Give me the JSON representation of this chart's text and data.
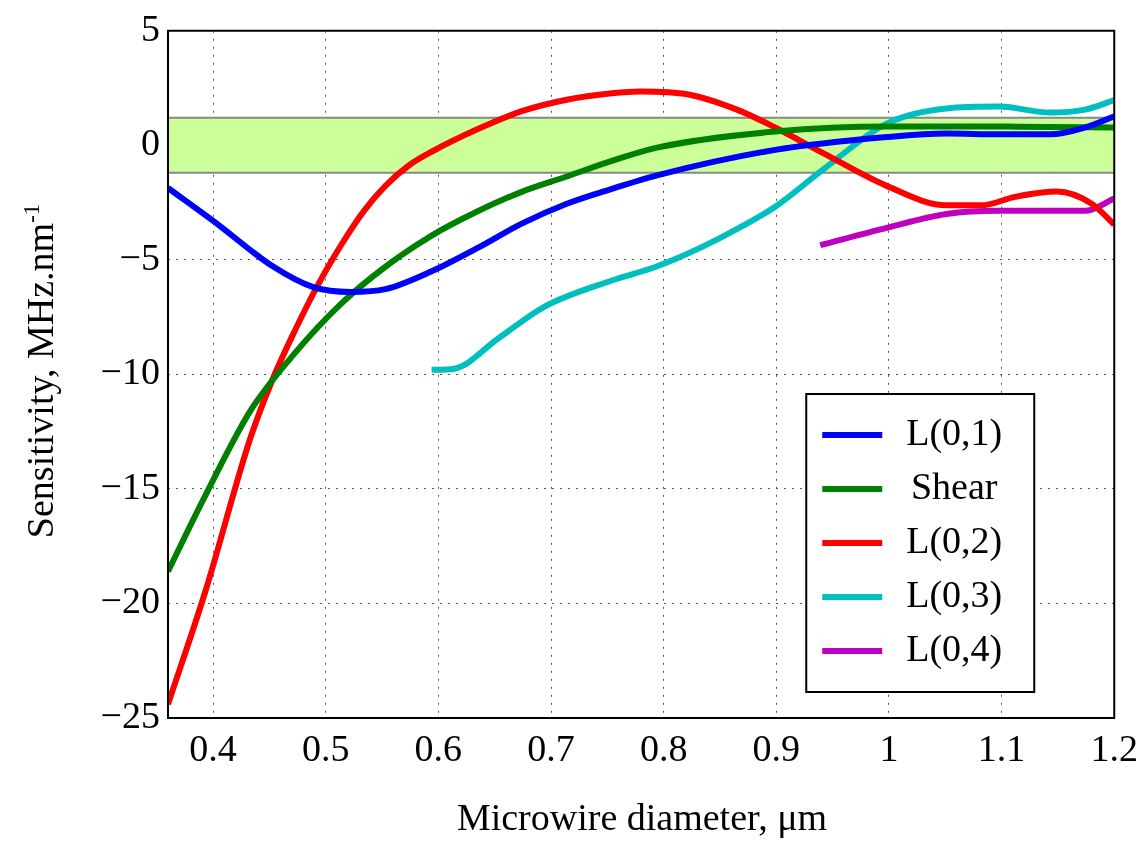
{
  "chart_data": {
    "type": "line",
    "xlabel": "Microwire diameter, μm",
    "ylabel": "Sensitivity, MHz.nm$^{-1}$",
    "xlim": [
      0.36,
      1.2
    ],
    "xticks": [
      0.4,
      0.5,
      0.6,
      0.7,
      0.8,
      0.9,
      1,
      1.1,
      1.2
    ],
    "ylim": [
      -25,
      5
    ],
    "yticks": [
      {
        "value": -25,
        "label": "−25"
      },
      {
        "value": -20,
        "label": "−20"
      },
      {
        "value": -15,
        "label": "−15"
      },
      {
        "value": -10,
        "label": "−10"
      },
      {
        "value": -5,
        "label": "−5"
      },
      0,
      5
    ],
    "grid": true,
    "legend": "bottom right",
    "marker": "none",
    "line_style": "solid",
    "bands": [
      {
        "axis": "y",
        "from": -1.2,
        "to": 1.2,
        "color": "#ccff99"
      }
    ],
    "ref_lines": [
      {
        "axis": "y",
        "value": -1.2,
        "color": "#888888"
      },
      {
        "axis": "y",
        "value": 1.2,
        "color": "#888888"
      }
    ],
    "series": [
      {
        "name": "L(0,1)",
        "color": "#0000ff",
        "x": [
          0.36,
          0.401,
          0.453,
          0.489,
          0.522,
          0.553,
          0.594,
          0.634,
          0.674,
          0.714,
          0.754,
          0.795,
          0.899,
          0.998,
          1.051,
          1.098,
          1.143,
          1.174,
          1.2
        ],
        "values": [
          -1.86,
          -3.33,
          -5.28,
          -6.19,
          -6.4,
          -6.28,
          -5.5,
          -4.5,
          -3.42,
          -2.55,
          -1.9,
          -1.3,
          -0.2,
          0.36,
          0.52,
          0.48,
          0.48,
          0.78,
          1.27
        ]
      },
      {
        "name": "Shear",
        "color": "#008000",
        "x": [
          0.36,
          0.393,
          0.433,
          0.473,
          0.514,
          0.553,
          0.594,
          0.634,
          0.674,
          0.714,
          0.754,
          0.795,
          0.899,
          0.998,
          1.098,
          1.2
        ],
        "values": [
          -18.6,
          -15.3,
          -11.6,
          -9.05,
          -6.9,
          -5.3,
          -3.94,
          -2.9,
          -2.03,
          -1.36,
          -0.68,
          -0.09,
          0.6,
          0.82,
          0.82,
          0.78
        ]
      },
      {
        "name": "L(0,2)",
        "color": "#ff0000",
        "x": [
          0.36,
          0.393,
          0.433,
          0.453,
          0.473,
          0.493,
          0.514,
          0.534,
          0.553,
          0.574,
          0.594,
          0.634,
          0.674,
          0.714,
          0.754,
          0.779,
          0.822,
          0.865,
          0.899,
          0.942,
          0.998,
          1.051,
          1.082,
          1.112,
          1.149,
          1.18,
          1.2
        ],
        "values": [
          -24.4,
          -19.5,
          -12.8,
          -10.2,
          -8.05,
          -6.1,
          -4.33,
          -2.86,
          -1.77,
          -0.87,
          -0.28,
          0.69,
          1.49,
          1.99,
          2.27,
          2.35,
          2.22,
          1.56,
          0.78,
          -0.35,
          -1.77,
          -2.62,
          -2.62,
          -2.25,
          -2.02,
          -2.55,
          -3.46
        ]
      },
      {
        "name": "L(0,3)",
        "color": "#00bfbf",
        "x": [
          0.594,
          0.614,
          0.654,
          0.694,
          0.754,
          0.795,
          0.849,
          0.899,
          0.942,
          0.998,
          1.051,
          1.098,
          1.143,
          1.174,
          1.2
        ],
        "values": [
          -9.8,
          -9.75,
          -8.4,
          -7.05,
          -5.9,
          -5.27,
          -4.07,
          -2.68,
          -1.04,
          0.95,
          1.61,
          1.69,
          1.43,
          1.56,
          1.97
        ]
      },
      {
        "name": "L(0,4)",
        "color": "#bf00bf",
        "x": [
          0.939,
          0.998,
          1.051,
          1.098,
          1.143,
          1.174,
          1.2
        ],
        "values": [
          -4.36,
          -3.6,
          -3.0,
          -2.86,
          -2.86,
          -2.86,
          -2.32
        ]
      }
    ]
  }
}
